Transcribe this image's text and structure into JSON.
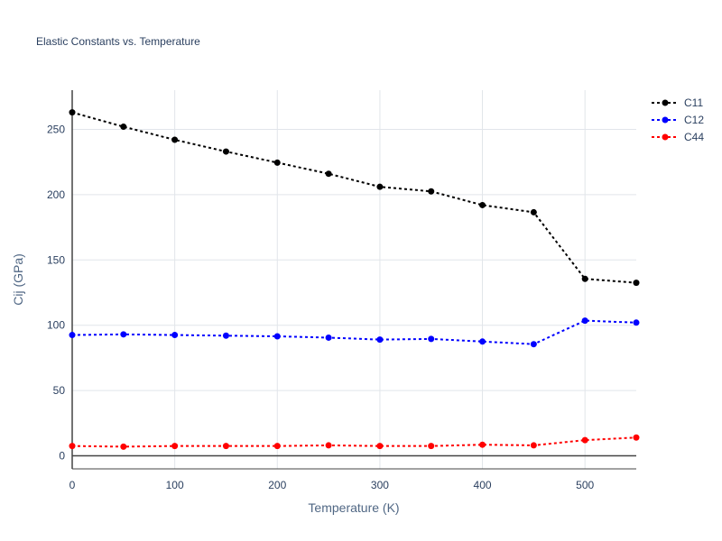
{
  "chart_data": {
    "type": "line",
    "title": "Elastic Constants vs. Temperature",
    "xlabel": "Temperature (K)",
    "ylabel": "Cij (GPa)",
    "xlim": [
      0,
      550
    ],
    "ylim": [
      -10,
      280
    ],
    "x_ticks": [
      "0",
      "100",
      "200",
      "300",
      "400",
      "500"
    ],
    "y_ticks": [
      "0",
      "50",
      "100",
      "150",
      "200",
      "250"
    ],
    "grid": true,
    "legend_position": "top-right",
    "x": [
      0,
      50,
      100,
      150,
      200,
      250,
      300,
      350,
      400,
      450,
      500,
      550
    ],
    "series": [
      {
        "name": "C11",
        "color": "#000000",
        "values": [
          263,
          252,
          242,
          233,
          224.5,
          216,
          206,
          202.5,
          192,
          186.5,
          135.5,
          132.5
        ]
      },
      {
        "name": "C12",
        "color": "#0000ff",
        "values": [
          92.5,
          93,
          92.5,
          92,
          91.5,
          90.5,
          89,
          89.5,
          87.5,
          85.5,
          103.5,
          102
        ]
      },
      {
        "name": "C44",
        "color": "#ff0000",
        "values": [
          7.5,
          7,
          7.5,
          7.5,
          7.5,
          8,
          7.5,
          7.5,
          8.5,
          8,
          12,
          14
        ]
      }
    ]
  }
}
